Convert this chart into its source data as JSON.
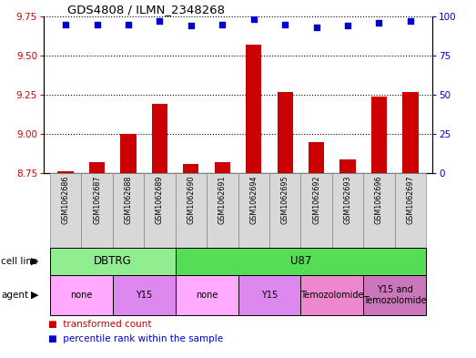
{
  "title": "GDS4808 / ILMN_2348268",
  "samples": [
    "GSM1062686",
    "GSM1062687",
    "GSM1062688",
    "GSM1062689",
    "GSM1062690",
    "GSM1062691",
    "GSM1062694",
    "GSM1062695",
    "GSM1062692",
    "GSM1062693",
    "GSM1062696",
    "GSM1062697"
  ],
  "red_values": [
    8.76,
    8.82,
    9.0,
    9.19,
    8.81,
    8.82,
    9.57,
    9.27,
    8.95,
    8.84,
    9.24,
    9.27
  ],
  "blue_pct": [
    95,
    95,
    95,
    97,
    94,
    95,
    98,
    95,
    93,
    94,
    96,
    97
  ],
  "ylim_left": [
    8.75,
    9.75
  ],
  "ylim_right": [
    0,
    100
  ],
  "yticks_left": [
    8.75,
    9.0,
    9.25,
    9.5,
    9.75
  ],
  "yticks_right": [
    0,
    25,
    50,
    75,
    100
  ],
  "cell_line_groups": [
    {
      "label": "DBTRG",
      "start": 0,
      "end": 4,
      "color": "#90EE90"
    },
    {
      "label": "U87",
      "start": 4,
      "end": 12,
      "color": "#55DD55"
    }
  ],
  "agent_groups": [
    {
      "label": "none",
      "start": 0,
      "end": 2,
      "color": "#FFAAFF"
    },
    {
      "label": "Y15",
      "start": 2,
      "end": 4,
      "color": "#DD88EE"
    },
    {
      "label": "none",
      "start": 4,
      "end": 6,
      "color": "#FFAAFF"
    },
    {
      "label": "Y15",
      "start": 6,
      "end": 8,
      "color": "#DD88EE"
    },
    {
      "label": "Temozolomide",
      "start": 8,
      "end": 10,
      "color": "#EE88CC"
    },
    {
      "label": "Y15 and\nTemozolomide",
      "start": 10,
      "end": 12,
      "color": "#CC77BB"
    }
  ],
  "bar_color": "#CC0000",
  "dot_color": "#0000CC",
  "label_color_left": "#CC0000",
  "label_color_right": "#0000CC",
  "sample_box_color": "#D8D8D8",
  "sample_box_edge": "#888888"
}
